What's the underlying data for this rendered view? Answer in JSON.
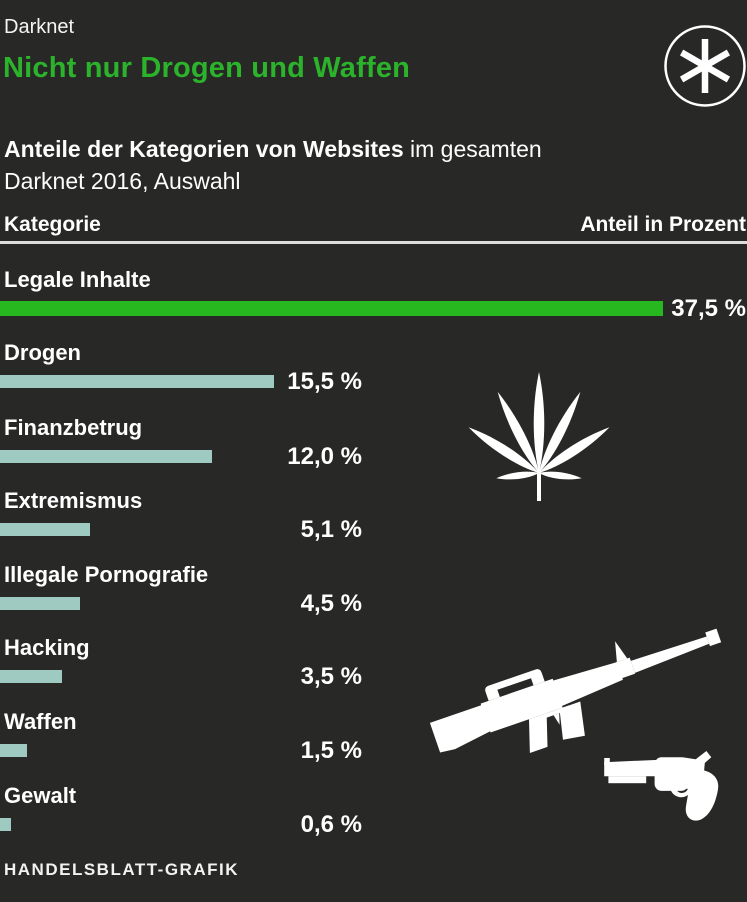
{
  "header": {
    "kicker": "Darknet",
    "title": "Nicht nur Drogen und Waffen",
    "logo_icon": "asterisk-in-circle"
  },
  "subtitle": {
    "line1_bold": "Anteile der Kategorien von Websites",
    "line1_regular": " im gesamten",
    "line2": "Darknet 2016, Auswahl"
  },
  "table": {
    "col_category": "Kategorie",
    "col_value": "Anteil in Prozent"
  },
  "footer": {
    "credit": "HANDELSBLATT-GRAFIK"
  },
  "icons": [
    "asterisk-icon",
    "cannabis-leaf-icon",
    "rifle-icon",
    "revolver-icon"
  ],
  "colors": {
    "background": "#282826",
    "title_green": "#2cb32c",
    "bar_green": "#26b81e",
    "bar_teal": "#9ecac2",
    "divider": "#dcdcdc",
    "text": "#ffffff"
  },
  "chart_data": {
    "type": "bar",
    "orientation": "horizontal",
    "title": "Anteile der Kategorien von Websites im gesamten Darknet 2016, Auswahl",
    "xlabel": "Anteil in Prozent",
    "ylabel": "Kategorie",
    "xlim": [
      0,
      37.5
    ],
    "grid": false,
    "legend": "none",
    "highlight_index": 0,
    "categories": [
      "Legale Inhalte",
      "Drogen",
      "Finanzbetrug",
      "Extremismus",
      "Illegale Pornografie",
      "Hacking",
      "Waffen",
      "Gewalt"
    ],
    "values": [
      37.5,
      15.5,
      12.0,
      5.1,
      4.5,
      3.5,
      1.5,
      0.6
    ],
    "value_labels": [
      "37,5 %",
      "15,5 %",
      "12,0 %",
      "5,1 %",
      "4,5 %",
      "3,5 %",
      "1,5 %",
      "0,6 %"
    ]
  }
}
